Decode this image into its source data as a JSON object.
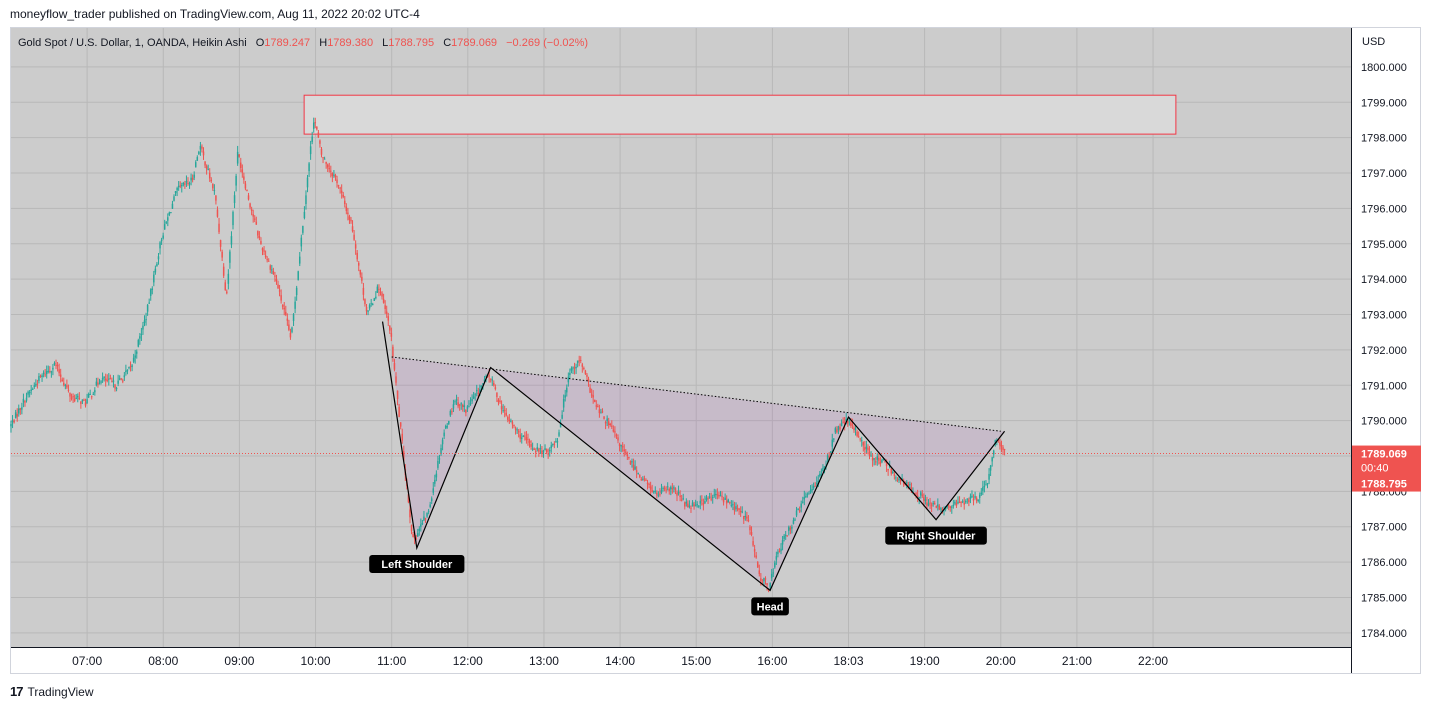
{
  "header": {
    "published_by": "moneyflow_trader published on TradingView.com, Aug 11, 2022 20:02 UTC-4"
  },
  "footer": {
    "brand": "TradingView",
    "logo_icon": "tradingview-logo-icon"
  },
  "chart_data": {
    "type": "candlestick",
    "symbol": "Gold Spot / U.S. Dollar, 1, OANDA, Heikin Ashi",
    "ohlc": {
      "o_label": "O",
      "o": "1789.247",
      "h_label": "H",
      "h": "1789.380",
      "l_label": "L",
      "l": "1788.795",
      "c_label": "C",
      "c": "1789.069",
      "change": "−0.269 (−0.02%)"
    },
    "currency": "USD",
    "y_range": [
      1783.6,
      1801.1
    ],
    "y_ticks": [
      "1784.000",
      "1785.000",
      "1786.000",
      "1787.000",
      "1788.000",
      "1789.000",
      "1790.000",
      "1791.000",
      "1792.000",
      "1793.000",
      "1794.000",
      "1795.000",
      "1796.000",
      "1797.000",
      "1798.000",
      "1799.000",
      "1800.000"
    ],
    "x_range": [
      6.0,
      23.6
    ],
    "x_ticks": [
      {
        "t": 7.0,
        "label": "07:00"
      },
      {
        "t": 8.0,
        "label": "08:00"
      },
      {
        "t": 9.0,
        "label": "09:00"
      },
      {
        "t": 10.0,
        "label": "10:00"
      },
      {
        "t": 11.0,
        "label": "11:00"
      },
      {
        "t": 12.0,
        "label": "12:00"
      },
      {
        "t": 13.0,
        "label": "13:00"
      },
      {
        "t": 14.0,
        "label": "14:00"
      },
      {
        "t": 15.0,
        "label": "15:00"
      },
      {
        "t": 16.0,
        "label": "16:00"
      },
      {
        "t": 17.0,
        "label": "18:03"
      },
      {
        "t": 18.0,
        "label": "19:00"
      },
      {
        "t": 19.0,
        "label": "20:00"
      },
      {
        "t": 20.0,
        "label": "21:00"
      },
      {
        "t": 21.0,
        "label": "22:00"
      }
    ],
    "price_path": [
      [
        6.0,
        1789.8
      ],
      [
        6.2,
        1790.6
      ],
      [
        6.4,
        1791.2
      ],
      [
        6.6,
        1791.6
      ],
      [
        6.8,
        1790.7
      ],
      [
        7.0,
        1790.5
      ],
      [
        7.2,
        1791.2
      ],
      [
        7.4,
        1791.0
      ],
      [
        7.6,
        1791.5
      ],
      [
        7.8,
        1793.0
      ],
      [
        8.0,
        1795.2
      ],
      [
        8.2,
        1796.5
      ],
      [
        8.4,
        1796.8
      ],
      [
        8.5,
        1797.8
      ],
      [
        8.7,
        1796.4
      ],
      [
        8.85,
        1793.5
      ],
      [
        9.0,
        1797.6
      ],
      [
        9.15,
        1796.2
      ],
      [
        9.3,
        1795.0
      ],
      [
        9.5,
        1794.0
      ],
      [
        9.7,
        1792.3
      ],
      [
        9.85,
        1795.5
      ],
      [
        10.0,
        1798.6
      ],
      [
        10.1,
        1797.5
      ],
      [
        10.3,
        1796.8
      ],
      [
        10.5,
        1795.5
      ],
      [
        10.7,
        1793.0
      ],
      [
        10.85,
        1793.8
      ],
      [
        11.0,
        1792.6
      ],
      [
        11.15,
        1789.5
      ],
      [
        11.3,
        1786.6
      ],
      [
        11.5,
        1787.4
      ],
      [
        11.7,
        1789.6
      ],
      [
        11.85,
        1790.6
      ],
      [
        12.0,
        1790.3
      ],
      [
        12.15,
        1790.8
      ],
      [
        12.3,
        1791.3
      ],
      [
        12.5,
        1790.2
      ],
      [
        12.7,
        1789.6
      ],
      [
        12.9,
        1789.2
      ],
      [
        13.05,
        1789.1
      ],
      [
        13.2,
        1789.5
      ],
      [
        13.35,
        1791.4
      ],
      [
        13.5,
        1791.7
      ],
      [
        13.7,
        1790.4
      ],
      [
        13.9,
        1789.8
      ],
      [
        14.1,
        1789.0
      ],
      [
        14.3,
        1788.4
      ],
      [
        14.5,
        1787.9
      ],
      [
        14.7,
        1788.1
      ],
      [
        14.9,
        1787.6
      ],
      [
        15.1,
        1787.7
      ],
      [
        15.3,
        1787.9
      ],
      [
        15.5,
        1787.6
      ],
      [
        15.7,
        1787.2
      ],
      [
        15.85,
        1785.6
      ],
      [
        15.97,
        1785.3
      ],
      [
        16.1,
        1786.3
      ],
      [
        16.3,
        1787.2
      ],
      [
        16.5,
        1788.0
      ],
      [
        16.7,
        1788.6
      ],
      [
        16.85,
        1789.7
      ],
      [
        17.0,
        1790.0
      ],
      [
        17.15,
        1789.6
      ],
      [
        17.3,
        1789.0
      ],
      [
        17.5,
        1788.8
      ],
      [
        17.7,
        1788.3
      ],
      [
        17.9,
        1788.0
      ],
      [
        18.1,
        1787.6
      ],
      [
        18.3,
        1787.5
      ],
      [
        18.5,
        1787.7
      ],
      [
        18.7,
        1787.8
      ],
      [
        18.85,
        1788.2
      ],
      [
        18.95,
        1789.5
      ],
      [
        19.05,
        1789.1
      ]
    ],
    "resistance_zone": {
      "t0": 9.85,
      "t1": 21.3,
      "p_low": 1798.1,
      "p_high": 1799.2
    },
    "pattern_lines": [
      [
        10.88,
        1792.8
      ],
      [
        11.33,
        1786.4
      ],
      [
        12.3,
        1791.5
      ],
      [
        15.97,
        1785.2
      ],
      [
        17.0,
        1790.1
      ],
      [
        18.15,
        1787.2
      ],
      [
        19.05,
        1789.7
      ]
    ],
    "neckline": [
      [
        11.0,
        1791.8
      ],
      [
        19.0,
        1789.7
      ]
    ],
    "labels": [
      {
        "text": "Left Shoulder",
        "t": 11.33,
        "p": 1786.4
      },
      {
        "text": "Head",
        "t": 15.97,
        "p": 1785.2
      },
      {
        "text": "Right Shoulder",
        "t": 18.15,
        "p": 1787.2
      }
    ],
    "price_tag": {
      "price": "1789.069",
      "countdown": "00:40",
      "low_price": "1788.795",
      "p": 1789.069
    },
    "colors": {
      "up": "#26a69a",
      "down": "#ef5350",
      "pane_bg": "#cccccc",
      "zone_stroke": "#f23645",
      "pattern_fill": "#9c27b0",
      "line": "#000000",
      "tag": "#ef5350"
    }
  }
}
